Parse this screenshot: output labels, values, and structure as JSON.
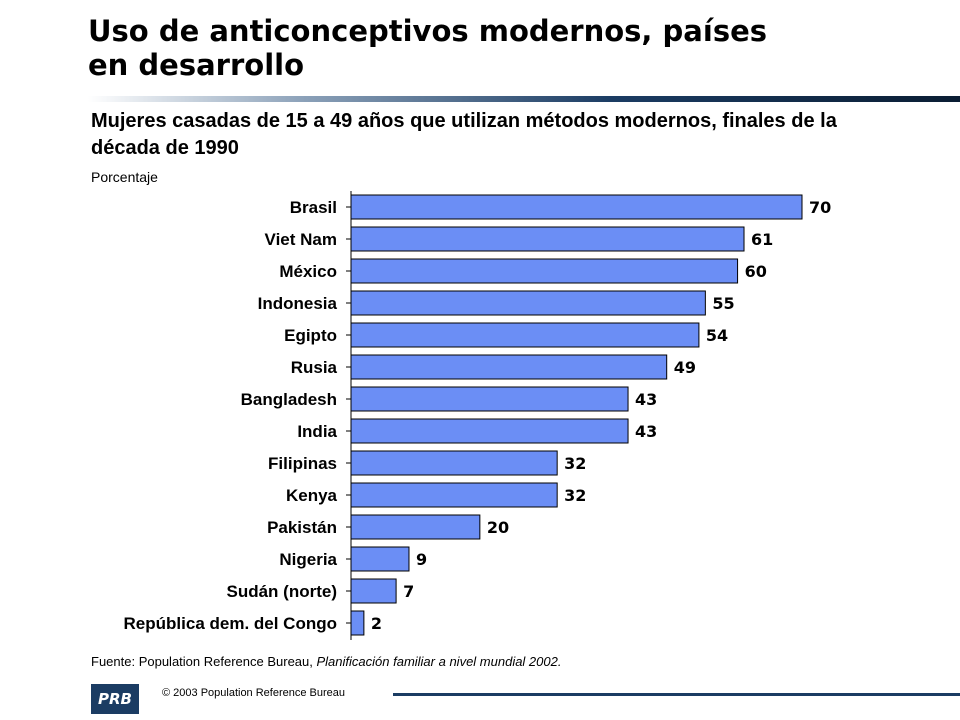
{
  "title": "Uso de anticonceptivos modernos, países en desarrollo",
  "subtitle": "Mujeres casadas de 15 a 49 años que utilizan métodos modernos, finales de la década de 1990",
  "unit_label": "Porcentaje",
  "source": {
    "prefix": "Fuente: Population Reference Bureau,",
    "publication": "Planificación familiar a nivel mundial 2002."
  },
  "footer": {
    "logo_text": "PRB",
    "copyright": "© 2003  Population Reference Bureau"
  },
  "colors": {
    "bar_fill": "#6b8ef5",
    "bar_stroke": "#000000",
    "title_rule": "#1b3c63"
  },
  "chart_data": {
    "type": "bar",
    "orientation": "horizontal",
    "title": "Mujeres casadas de 15 a 49 años que utilizan métodos modernos, finales de la década de 1990",
    "xlabel": "Porcentaje",
    "ylabel": "",
    "xlim": [
      0,
      70
    ],
    "grid": false,
    "legend": "none",
    "categories": [
      "Brasil",
      "Viet Nam",
      "México",
      "Indonesia",
      "Egipto",
      "Rusia",
      "Bangladesh",
      "India",
      "Filipinas",
      "Kenya",
      "Pakistán",
      "Nigeria",
      "Sudán (norte)",
      "República dem. del Congo"
    ],
    "values": [
      70,
      61,
      60,
      55,
      54,
      49,
      43,
      43,
      32,
      32,
      20,
      9,
      7,
      2
    ]
  }
}
